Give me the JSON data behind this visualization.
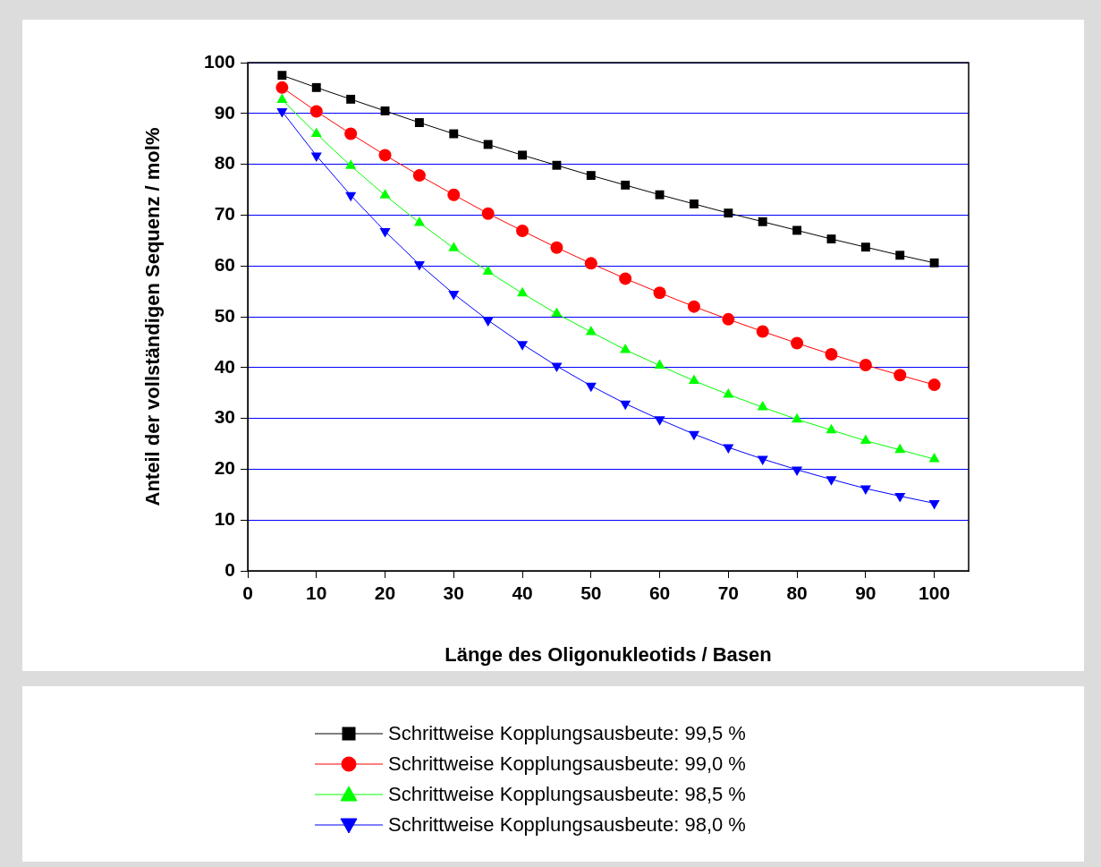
{
  "chart_data": {
    "type": "line",
    "xlabel": "Länge des Oligonukleotids / Basen",
    "ylabel": "Anteil der vollständigen Sequenz / mol%",
    "x": [
      5,
      10,
      15,
      20,
      25,
      30,
      35,
      40,
      45,
      50,
      55,
      60,
      65,
      70,
      75,
      80,
      85,
      90,
      95,
      100
    ],
    "xlim": [
      0,
      105
    ],
    "xticks": [
      0,
      10,
      20,
      30,
      40,
      50,
      60,
      70,
      80,
      90,
      100
    ],
    "ylim": [
      0,
      100
    ],
    "yticks": [
      0,
      10,
      20,
      30,
      40,
      50,
      60,
      70,
      80,
      90,
      100
    ],
    "grid": "y",
    "legend": "bottom",
    "line_style": "solid",
    "series": [
      {
        "name": "Schrittweise Kopplungsausbeute: 99,5 %",
        "color": "#000000",
        "marker": "square",
        "values": [
          97.5,
          95.1,
          92.8,
          90.5,
          88.2,
          86.0,
          83.9,
          81.8,
          79.8,
          77.8,
          75.9,
          74.0,
          72.2,
          70.4,
          68.7,
          67.0,
          65.3,
          63.7,
          62.1,
          60.6
        ]
      },
      {
        "name": "Schrittweise Kopplungsausbeute: 99,0 %",
        "color": "#ff0000",
        "marker": "circle",
        "values": [
          95.1,
          90.4,
          86.0,
          81.8,
          77.8,
          74.0,
          70.3,
          66.9,
          63.6,
          60.5,
          57.5,
          54.7,
          52.0,
          49.5,
          47.1,
          44.8,
          42.6,
          40.5,
          38.5,
          36.6
        ]
      },
      {
        "name": "Schrittweise Kopplungsausbeute: 98,5 %",
        "color": "#00ff00",
        "marker": "triangle",
        "values": [
          92.7,
          86.0,
          79.7,
          73.9,
          68.5,
          63.5,
          58.9,
          54.6,
          50.6,
          47.0,
          43.5,
          40.4,
          37.4,
          34.7,
          32.2,
          29.8,
          27.7,
          25.6,
          23.8,
          22.0
        ]
      },
      {
        "name": "Schrittweise Kopplungsausbeute: 98,0 %",
        "color": "#0000ff",
        "marker": "triangle-down",
        "values": [
          90.4,
          81.7,
          73.9,
          66.8,
          60.3,
          54.5,
          49.3,
          44.6,
          40.3,
          36.4,
          32.9,
          29.8,
          26.9,
          24.3,
          22.0,
          19.9,
          18.0,
          16.2,
          14.7,
          13.3
        ]
      }
    ]
  }
}
